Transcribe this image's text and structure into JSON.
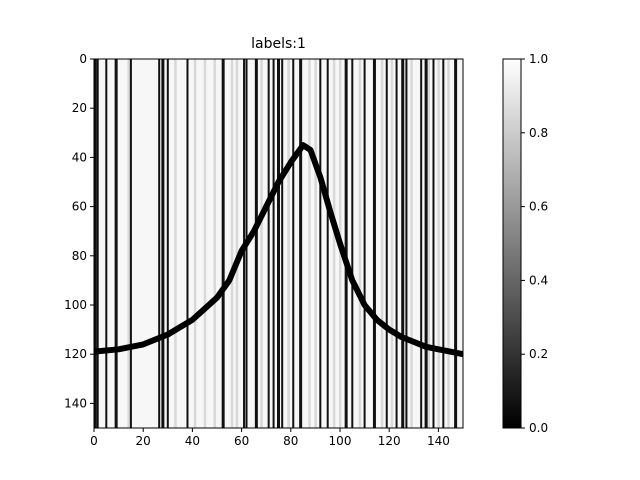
{
  "chart_data": {
    "type": "heatmap",
    "title": "labels:1",
    "xlabel": "",
    "ylabel": "",
    "x_range": [
      0,
      150
    ],
    "y_range": [
      0,
      150
    ],
    "y_inverted": true,
    "x_ticks": [
      0,
      20,
      40,
      60,
      80,
      100,
      120,
      140
    ],
    "y_ticks": [
      0,
      20,
      40,
      60,
      80,
      100,
      120,
      140
    ],
    "colormap": "gray",
    "colorbar": {
      "min": 0.0,
      "max": 1.0,
      "ticks": [
        "0.0",
        "0.2",
        "0.4",
        "0.6",
        "0.8",
        "1.0"
      ]
    },
    "dark_curve": [
      {
        "x": 0,
        "y": 119
      },
      {
        "x": 10,
        "y": 118
      },
      {
        "x": 20,
        "y": 116
      },
      {
        "x": 30,
        "y": 112
      },
      {
        "x": 40,
        "y": 106
      },
      {
        "x": 50,
        "y": 97
      },
      {
        "x": 55,
        "y": 90
      },
      {
        "x": 60,
        "y": 78
      },
      {
        "x": 65,
        "y": 70
      },
      {
        "x": 70,
        "y": 60
      },
      {
        "x": 75,
        "y": 50
      },
      {
        "x": 80,
        "y": 42
      },
      {
        "x": 85,
        "y": 35
      },
      {
        "x": 88,
        "y": 37
      },
      {
        "x": 92,
        "y": 48
      },
      {
        "x": 96,
        "y": 62
      },
      {
        "x": 100,
        "y": 75
      },
      {
        "x": 105,
        "y": 90
      },
      {
        "x": 110,
        "y": 100
      },
      {
        "x": 115,
        "y": 106
      },
      {
        "x": 120,
        "y": 110
      },
      {
        "x": 125,
        "y": 113
      },
      {
        "x": 130,
        "y": 115
      },
      {
        "x": 135,
        "y": 117
      },
      {
        "x": 140,
        "y": 118
      },
      {
        "x": 145,
        "y": 119
      },
      {
        "x": 150,
        "y": 120
      }
    ],
    "dark_columns": [
      0.5,
      1.5,
      5,
      9,
      15,
      26.5,
      28,
      30,
      38,
      52.5,
      61,
      62,
      66,
      71,
      73,
      75,
      76.5,
      81,
      84,
      92,
      95,
      102.5,
      105,
      110,
      114,
      119,
      123,
      125.5,
      127,
      133,
      135,
      138,
      142,
      147
    ],
    "light_columns": [
      14,
      33,
      41,
      45,
      49,
      56,
      58,
      68,
      79,
      87.5,
      90,
      97.5,
      100,
      108,
      117,
      121,
      129,
      136,
      140,
      144
    ]
  }
}
